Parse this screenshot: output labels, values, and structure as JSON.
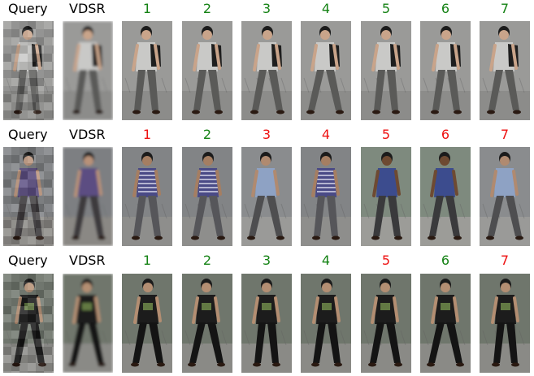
{
  "colors": {
    "match": "#148214",
    "mismatch": "#ee1111"
  },
  "rows": [
    {
      "query_label": "Query",
      "sr_label": "VDSR",
      "query_image": "pixelated-person-gray-shirt",
      "sr_image": "upscaled-person-gray-shirt",
      "results": [
        {
          "rank": "1",
          "correct": true,
          "image": "person-gray-shirt-backpack"
        },
        {
          "rank": "2",
          "correct": true,
          "image": "person-gray-shirt-backpack"
        },
        {
          "rank": "3",
          "correct": true,
          "image": "person-gray-shirt-backpack"
        },
        {
          "rank": "4",
          "correct": true,
          "image": "person-gray-shirt-backpack"
        },
        {
          "rank": "5",
          "correct": true,
          "image": "person-gray-shirt-backpack"
        },
        {
          "rank": "6",
          "correct": true,
          "image": "person-gray-shirt-backpack"
        },
        {
          "rank": "7",
          "correct": true,
          "image": "person-gray-shirt-backpack"
        }
      ]
    },
    {
      "query_label": "Query",
      "sr_label": "VDSR",
      "query_image": "pixelated-person-purple-shirt",
      "sr_image": "upscaled-person-purple-shirt",
      "results": [
        {
          "rank": "1",
          "correct": false,
          "image": "person-striped-shirt"
        },
        {
          "rank": "2",
          "correct": true,
          "image": "person-striped-shirt"
        },
        {
          "rank": "3",
          "correct": false,
          "image": "person-light-blue-shirt"
        },
        {
          "rank": "4",
          "correct": false,
          "image": "person-striped-shirt"
        },
        {
          "rank": "5",
          "correct": false,
          "image": "person-blue-shirt"
        },
        {
          "rank": "6",
          "correct": false,
          "image": "person-blue-shirt"
        },
        {
          "rank": "7",
          "correct": false,
          "image": "person-light-blue-shirt"
        }
      ]
    },
    {
      "query_label": "Query",
      "sr_label": "VDSR",
      "query_image": "pixelated-person-black-shirt",
      "sr_image": "upscaled-person-black-shirt",
      "results": [
        {
          "rank": "1",
          "correct": true,
          "image": "person-black-shirt"
        },
        {
          "rank": "2",
          "correct": true,
          "image": "person-black-shirt"
        },
        {
          "rank": "3",
          "correct": true,
          "image": "person-black-shirt"
        },
        {
          "rank": "4",
          "correct": true,
          "image": "person-black-shirt"
        },
        {
          "rank": "5",
          "correct": false,
          "image": "person-black-shirt"
        },
        {
          "rank": "6",
          "correct": true,
          "image": "person-black-shirt"
        },
        {
          "rank": "7",
          "correct": false,
          "image": "person-black-shirt"
        }
      ]
    }
  ]
}
